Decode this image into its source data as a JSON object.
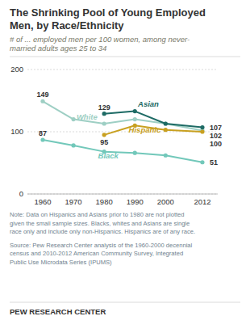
{
  "chart_data": {
    "type": "line",
    "title": [
      "The Shrinking Pool of Young Employed",
      "Men, by Race/Ethnicity"
    ],
    "subtitle": [
      "# of ... employed men per 100 women, among never-",
      "married adults ages 25 to 34"
    ],
    "x": [
      1960,
      1970,
      1980,
      1990,
      2000,
      2012
    ],
    "series": [
      {
        "name": "White",
        "color": "#9ecfc4",
        "values": [
          149,
          120,
          113,
          120,
          113,
          102
        ]
      },
      {
        "name": "Black",
        "color": "#72c8ba",
        "values": [
          87,
          78,
          68,
          66,
          62,
          51
        ]
      },
      {
        "name": "Asian",
        "color": "#1e6b65",
        "values": [
          null,
          null,
          129,
          133,
          113,
          107
        ]
      },
      {
        "name": "Hispanic",
        "color": "#c8a020",
        "values": [
          null,
          null,
          95,
          110,
          103,
          100
        ]
      }
    ],
    "marker": "circle",
    "xlim": [
      1955,
      2017
    ],
    "xticks": [
      1960,
      1970,
      1980,
      1990,
      2000,
      2012
    ],
    "ylim": [
      0,
      200
    ],
    "yticks": [
      0,
      100,
      200
    ],
    "grid": true,
    "annotations": [
      {
        "text": "149",
        "x": 1960,
        "y": 149
      },
      {
        "text": "87",
        "x": 1960,
        "y": 87
      },
      {
        "text": "129",
        "x": 1980,
        "y": 129
      },
      {
        "text": "95",
        "x": 1980,
        "y": 95
      },
      {
        "text": "107",
        "x": 2012,
        "y": 107
      },
      {
        "text": "102",
        "x": 2012,
        "y": 102
      },
      {
        "text": "100",
        "x": 2012,
        "y": 100
      },
      {
        "text": "51",
        "x": 2012,
        "y": 51
      }
    ],
    "series_labels": [
      {
        "text": "White",
        "x": 1971,
        "y": 117,
        "color": "#9ecfc4"
      },
      {
        "text": "Black",
        "x": 1978,
        "y": 55,
        "color": "#72c8ba"
      },
      {
        "text": "Asian",
        "x": 1991,
        "y": 138,
        "color": "#1e6b65"
      },
      {
        "text": "Hispanic",
        "x": 1988,
        "y": 96,
        "color": "#c8a020"
      }
    ],
    "note": "Note: Data on Hispanics and Asians prior to 1980 are not plotted\ngiven the small sample sizes. Blacks, whites and Asians are single\nrace only and include only non-Hispanics. Hispanics are of any race.",
    "source": "Source: Pew Research Center analysis of the 1960-2000 decennial\ncensus and 2010-2012 American Community Survey, Integrated\nPublic Use Microdata Series (IPUMS)",
    "footer": "PEW RESEARCH CENTER"
  }
}
